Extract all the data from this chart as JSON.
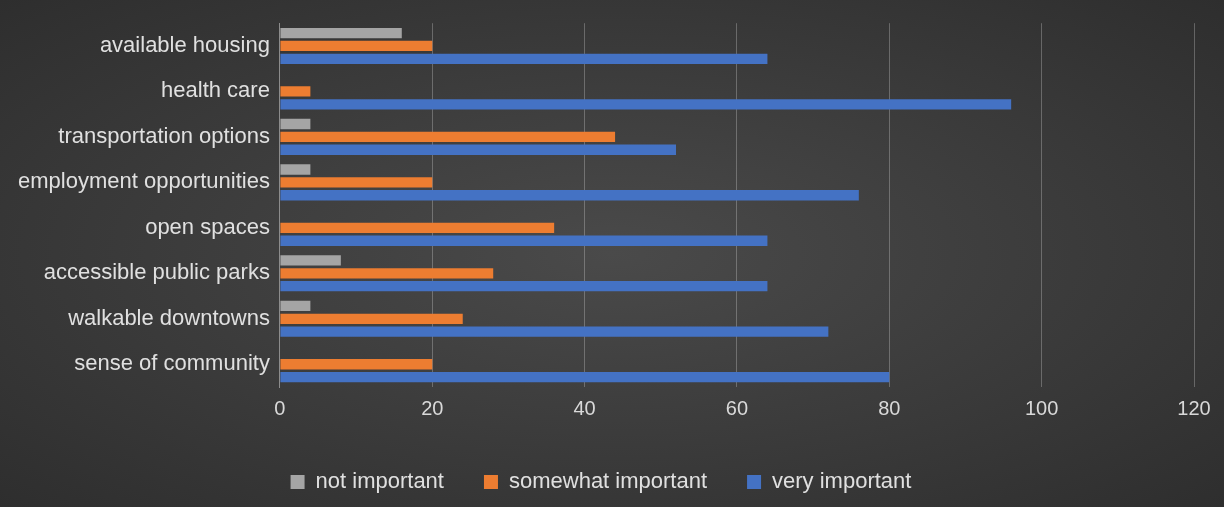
{
  "chart_data": {
    "type": "bar",
    "orientation": "horizontal",
    "categories": [
      "available housing",
      "health care",
      "transportation options",
      "employment opportunities",
      "open spaces",
      "accessible public parks",
      "walkable downtowns",
      "sense of community"
    ],
    "series": [
      {
        "name": "not important",
        "color": "#a5a5a5",
        "values": [
          16,
          0,
          4,
          4,
          0,
          8,
          4,
          0
        ]
      },
      {
        "name": "somewhat important",
        "color": "#ed7d31",
        "values": [
          20,
          4,
          44,
          20,
          36,
          28,
          24,
          20
        ]
      },
      {
        "name": "very important",
        "color": "#4472c4",
        "values": [
          64,
          96,
          52,
          76,
          64,
          64,
          72,
          80
        ]
      }
    ],
    "xlim": [
      0,
      120
    ],
    "xticks": [
      0,
      20,
      40,
      60,
      80,
      100,
      120
    ],
    "grid": "x",
    "legend": "bottom"
  }
}
